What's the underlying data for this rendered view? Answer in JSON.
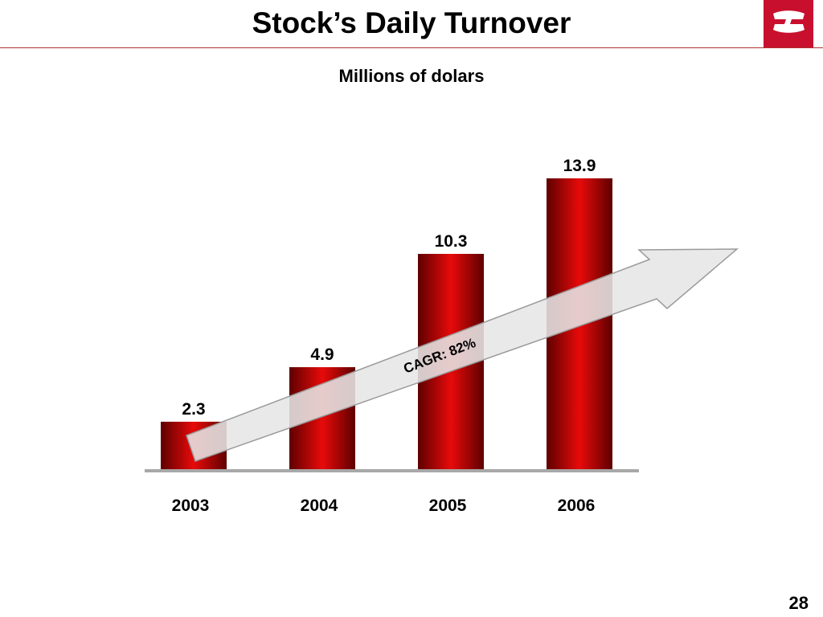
{
  "slide": {
    "title": "Stock’s Daily Turnover",
    "page_number": "28"
  },
  "chart_data": {
    "type": "bar",
    "title": "",
    "subtitle": "Millions of dolars",
    "xlabel": "",
    "ylabel": "",
    "categories": [
      "2003",
      "2004",
      "2005",
      "2006"
    ],
    "values": [
      2.3,
      4.9,
      10.3,
      13.9
    ],
    "value_labels": [
      "2.3",
      "4.9",
      "10.3",
      "13.9"
    ],
    "ylim": [
      0,
      13.9
    ],
    "grid": false,
    "legend": "none",
    "annotation": "CAGR: 82%",
    "colors": {
      "bar_edge": "#5e0000",
      "bar_center": "#e80a0a",
      "baseline": "#a8a8a8",
      "arrow_fill": "#e6e6e6",
      "arrow_stroke": "#9a9a9a",
      "accent": "#c8102e"
    }
  }
}
